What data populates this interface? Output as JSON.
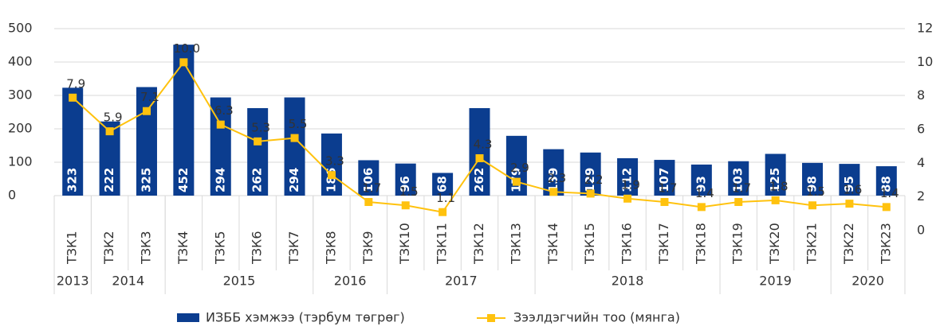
{
  "chart_data": {
    "type": "bar-line",
    "categories": [
      "ТЗК1",
      "ТЗК2",
      "ТЗК3",
      "ТЗК4",
      "ТЗК5",
      "ТЗК6",
      "ТЗК7",
      "ТЗК8",
      "ТЗК9",
      "ТЗК10",
      "ТЗК11",
      "ТЗК12",
      "ТЗК13",
      "ТЗК14",
      "ТЗК15",
      "ТЗК16",
      "ТЗК17",
      "ТЗК18",
      "ТЗК19",
      "ТЗК20",
      "ТЗК21",
      "ТЗК22",
      "ТЗК23"
    ],
    "groups": [
      {
        "label": "2013",
        "count": 1
      },
      {
        "label": "2014",
        "count": 2
      },
      {
        "label": "2015",
        "count": 4
      },
      {
        "label": "2016",
        "count": 2
      },
      {
        "label": "2017",
        "count": 4
      },
      {
        "label": "2018",
        "count": 5
      },
      {
        "label": "2019",
        "count": 3
      },
      {
        "label": "2020",
        "count": 2
      }
    ],
    "series": [
      {
        "name": "ИЗББ хэмжээ (тэрбум төгрөг)",
        "type": "bar",
        "color": "#0b3d8f",
        "values": [
          323,
          222,
          325,
          452,
          294,
          262,
          294,
          186,
          106,
          96,
          68,
          262,
          179,
          139,
          129,
          112,
          107,
          93,
          103,
          125,
          98,
          95,
          88
        ]
      },
      {
        "name": "Зээлдэгчийн тоо (мянга)",
        "type": "line",
        "axis": "y2",
        "color": "#ffc20e",
        "values": [
          7.9,
          5.9,
          7.1,
          10.0,
          6.3,
          5.3,
          5.5,
          3.3,
          1.7,
          1.5,
          1.1,
          4.3,
          2.9,
          2.3,
          2.2,
          1.9,
          1.7,
          1.4,
          1.7,
          1.8,
          1.5,
          1.6,
          1.4
        ],
        "value_labels": [
          "7.9",
          "5.9",
          "7.1",
          "10.0",
          "6.3",
          "5.3",
          "5.5",
          "3.3",
          "1.7",
          "1.5",
          "1.1",
          "4.3",
          "2.9",
          "2.3",
          "2.2",
          "1.9",
          "1.7",
          "1.4",
          "1.7",
          "1.8",
          "1.5",
          "1.6",
          "1.4"
        ]
      }
    ],
    "ylim": [
      0,
      500
    ],
    "yticks": [
      0,
      100,
      200,
      300,
      400,
      500
    ],
    "y2lim": [
      0,
      12
    ],
    "y2ticks": [
      0,
      2,
      4,
      6,
      8,
      10,
      12
    ],
    "grid": true,
    "legend": "bottom"
  }
}
